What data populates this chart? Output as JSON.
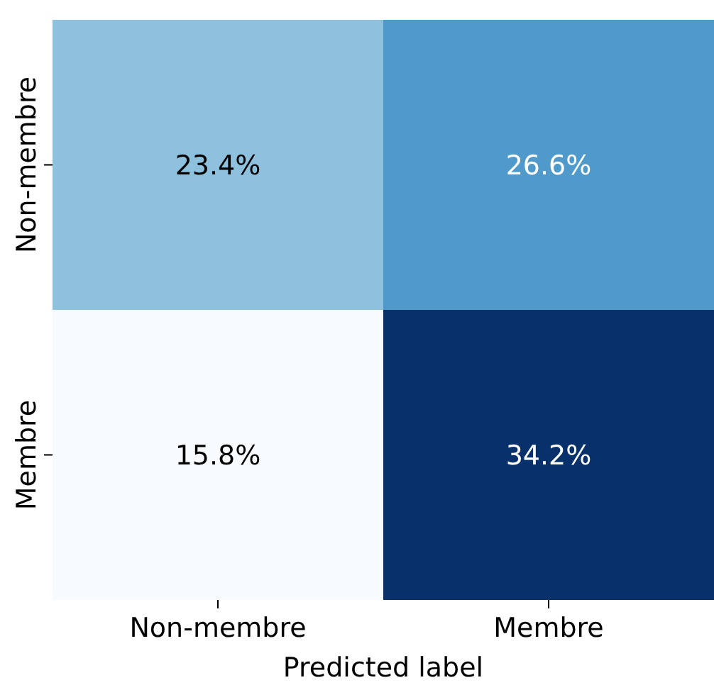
{
  "chart_data": {
    "type": "heatmap",
    "xlabel": "Predicted label",
    "categories": [
      "Non-membre",
      "Membre"
    ],
    "y_categories": [
      "Non-membre",
      "Membre"
    ],
    "cells": [
      [
        23.4,
        26.6
      ],
      [
        15.8,
        34.2
      ]
    ],
    "cell_labels": [
      [
        "23.4%",
        "26.6%"
      ],
      [
        "15.8%",
        "34.2%"
      ]
    ]
  }
}
